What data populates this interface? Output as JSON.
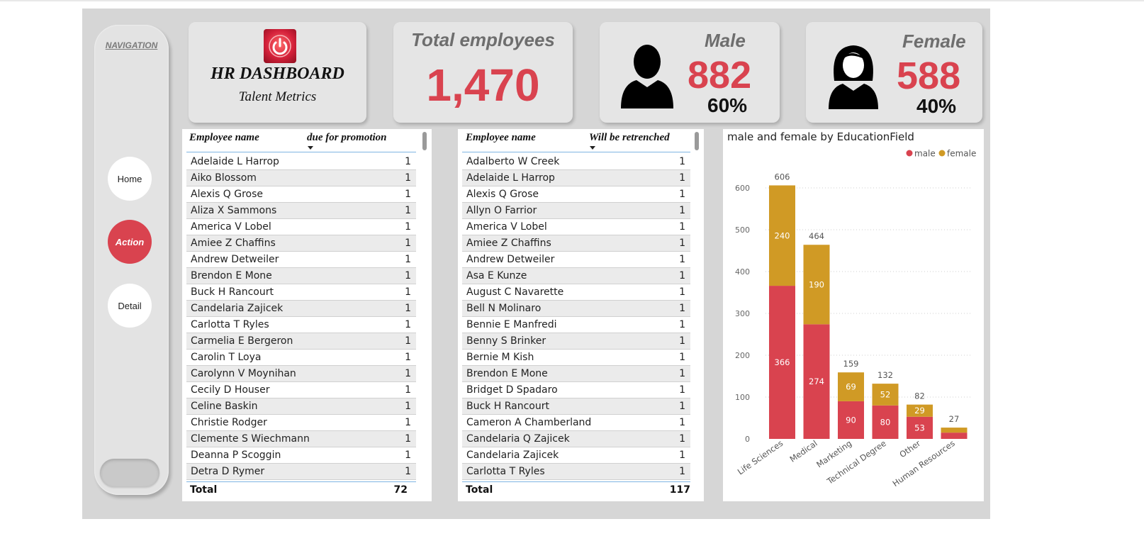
{
  "navigation": {
    "title": "NAVIGATION",
    "buttons": [
      "Home",
      "Action",
      "Detail"
    ],
    "active": "Action"
  },
  "header": {
    "title": "HR DASHBOARD",
    "subtitle": "Talent Metrics",
    "logo_icon": "power-button-icon"
  },
  "kpis": {
    "total_label": "Total employees",
    "total_value": "1,470",
    "male_label": "Male",
    "male_value": "882",
    "male_pct": "60%",
    "female_label": "Female",
    "female_value": "588",
    "female_pct": "40%"
  },
  "promotion_table": {
    "col1": "Employee name",
    "col2": "due for promotion",
    "rows": [
      [
        "Adelaide L Harrop",
        "1"
      ],
      [
        "Aiko Blossom",
        "1"
      ],
      [
        "Alexis Q Grose",
        "1"
      ],
      [
        "Aliza X Sammons",
        "1"
      ],
      [
        "America V Lobel",
        "1"
      ],
      [
        "Amiee Z Chaffins",
        "1"
      ],
      [
        "Andrew Detweiler",
        "1"
      ],
      [
        "Brendon E Mone",
        "1"
      ],
      [
        "Buck H Rancourt",
        "1"
      ],
      [
        "Candelaria Zajicek",
        "1"
      ],
      [
        "Carlotta T Ryles",
        "1"
      ],
      [
        "Carmelia E Bergeron",
        "1"
      ],
      [
        "Carolin T Loya",
        "1"
      ],
      [
        "Carolynn V Moynihan",
        "1"
      ],
      [
        "Cecily D Houser",
        "1"
      ],
      [
        "Celine Baskin",
        "1"
      ],
      [
        "Christie Rodger",
        "1"
      ],
      [
        "Clemente S Wiechmann",
        "1"
      ],
      [
        "Deanna P Scoggin",
        "1"
      ],
      [
        "Detra D Rymer",
        "1"
      ]
    ],
    "total_label": "Total",
    "total_value": "72"
  },
  "retrench_table": {
    "col1": "Employee name",
    "col2": "Will be retrenched",
    "rows": [
      [
        "Adalberto W Creek",
        "1"
      ],
      [
        "Adelaide L Harrop",
        "1"
      ],
      [
        "Alexis Q Grose",
        "1"
      ],
      [
        "Allyn O Farrior",
        "1"
      ],
      [
        "America V Lobel",
        "1"
      ],
      [
        "Amiee Z Chaffins",
        "1"
      ],
      [
        "Andrew Detweiler",
        "1"
      ],
      [
        "Asa E Kunze",
        "1"
      ],
      [
        "August C Navarette",
        "1"
      ],
      [
        "Bell N Molinaro",
        "1"
      ],
      [
        "Bennie E Manfredi",
        "1"
      ],
      [
        "Benny S Brinker",
        "1"
      ],
      [
        "Bernie M Kish",
        "1"
      ],
      [
        "Brendon E Mone",
        "1"
      ],
      [
        "Bridget D Spadaro",
        "1"
      ],
      [
        "Buck H Rancourt",
        "1"
      ],
      [
        "Cameron A Chamberland",
        "1"
      ],
      [
        "Candelaria Q Zajicek",
        "1"
      ],
      [
        "Candelaria Zajicek",
        "1"
      ],
      [
        "Carlotta T Ryles",
        "1"
      ]
    ],
    "total_label": "Total",
    "total_value": "117"
  },
  "colors": {
    "accent_red": "#d9434f",
    "female_gold": "#d09a25"
  },
  "chart_data": {
    "type": "bar",
    "stacked": true,
    "title": "male and female by EducationField",
    "categories": [
      "Life Sciences",
      "Medical",
      "Marketing",
      "Technical Degree",
      "Other",
      "Human Resources"
    ],
    "series": [
      {
        "name": "male",
        "color": "#d9434f",
        "values": [
          366,
          274,
          90,
          80,
          53,
          15
        ]
      },
      {
        "name": "female",
        "color": "#d09a25",
        "values": [
          240,
          190,
          69,
          52,
          29,
          12
        ]
      }
    ],
    "totals": [
      606,
      464,
      159,
      132,
      82,
      27
    ],
    "segment_labels": {
      "male": [
        "366",
        "274",
        "90",
        "80",
        "53",
        ""
      ],
      "female": [
        "240",
        "190",
        "69",
        "52",
        "29",
        ""
      ]
    },
    "ylim": [
      0,
      650
    ],
    "yticks": [
      0,
      100,
      200,
      300,
      400,
      500,
      600
    ],
    "legend": "top-right",
    "grid": true
  }
}
